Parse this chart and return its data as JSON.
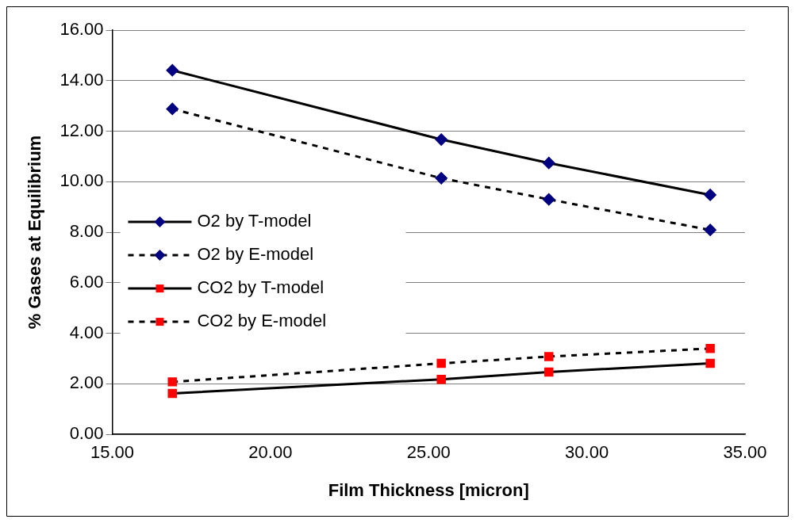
{
  "chart_data": {
    "type": "line",
    "xlabel": "Film Thickness [micron]",
    "ylabel": "% Gases at Equilibrium",
    "x": [
      16.9,
      25.4,
      28.8,
      33.9
    ],
    "series": [
      {
        "name": "O2 by T-model",
        "color": "#000080",
        "values": [
          14.41,
          11.67,
          10.74,
          9.48
        ],
        "line_style": "solid",
        "marker": "diamond"
      },
      {
        "name": "O2 by E-model",
        "color": "#000080",
        "values": [
          12.88,
          10.14,
          9.3,
          8.09
        ],
        "line_style": "dashed",
        "marker": "diamond"
      },
      {
        "name": "CO2 by T-model",
        "color": "#ff0000",
        "values": [
          1.62,
          2.18,
          2.47,
          2.81
        ],
        "line_style": "solid",
        "marker": "square"
      },
      {
        "name": "CO2 by E-model",
        "color": "#ff0000",
        "values": [
          2.08,
          2.81,
          3.08,
          3.4
        ],
        "line_style": "dashed",
        "marker": "square"
      }
    ],
    "xlim": [
      15,
      35
    ],
    "xticks": [
      {
        "value": 15,
        "label": "15.00"
      },
      {
        "value": 20,
        "label": "20.00"
      },
      {
        "value": 25,
        "label": "25.00"
      },
      {
        "value": 30,
        "label": "30.00"
      },
      {
        "value": 35,
        "label": "35.00"
      }
    ],
    "ylim": [
      0,
      16
    ],
    "yticks": [
      {
        "value": 0,
        "label": "0.00"
      },
      {
        "value": 2,
        "label": "2.00"
      },
      {
        "value": 4,
        "label": "4.00"
      },
      {
        "value": 6,
        "label": "6.00"
      },
      {
        "value": 8,
        "label": "8.00"
      },
      {
        "value": 10,
        "label": "10.00"
      },
      {
        "value": 12,
        "label": "12.00"
      },
      {
        "value": 14,
        "label": "14.00"
      },
      {
        "value": 16,
        "label": "16.00"
      }
    ],
    "grid": "y",
    "legend": "left"
  }
}
